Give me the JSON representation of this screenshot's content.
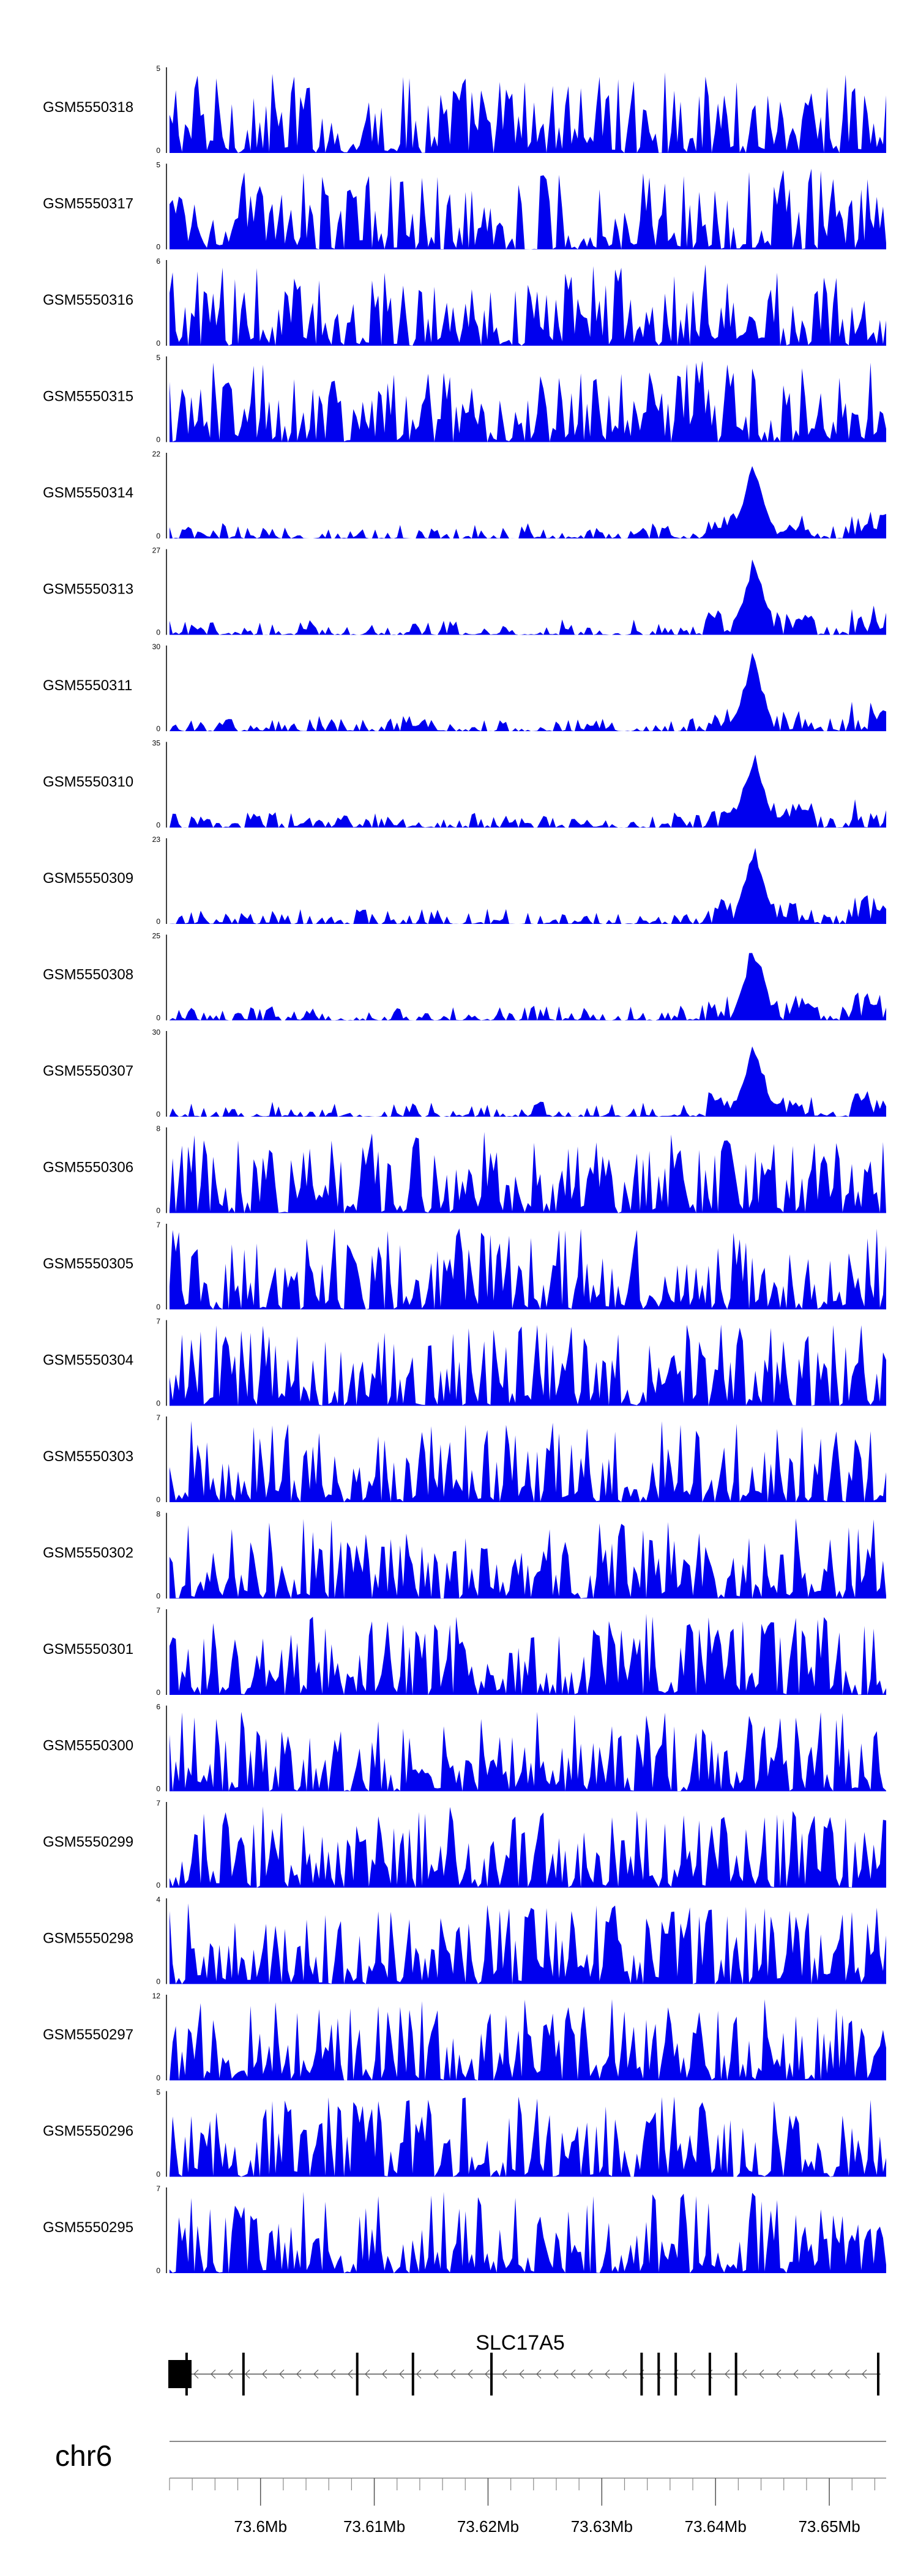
{
  "colors": {
    "track": "#0000ee",
    "axis": "#000000",
    "gene": "#000000"
  },
  "chart_data": {
    "type": "area",
    "title": "",
    "chromosome": "chr6",
    "xlim": [
      73.592,
      73.655
    ],
    "x_unit": "Mb",
    "x_ticks": [
      "73.6Mb",
      "73.61Mb",
      "73.62Mb",
      "73.63Mb",
      "73.64Mb",
      "73.65Mb"
    ],
    "tracks": [
      {
        "name": "GSM5550318",
        "ymax": 5,
        "ymin_label": "0",
        "ymax_label": "5"
      },
      {
        "name": "GSM5550317",
        "ymax": 5,
        "ymin_label": "0",
        "ymax_label": "5"
      },
      {
        "name": "GSM5550316",
        "ymax": 6,
        "ymin_label": "0",
        "ymax_label": "6"
      },
      {
        "name": "GSM5550315",
        "ymax": 5,
        "ymin_label": "0",
        "ymax_label": "5"
      },
      {
        "name": "GSM5550314",
        "ymax": 22,
        "ymin_label": "0",
        "ymax_label": "22"
      },
      {
        "name": "GSM5550313",
        "ymax": 27,
        "ymin_label": "0",
        "ymax_label": "27"
      },
      {
        "name": "GSM5550311",
        "ymax": 30,
        "ymin_label": "0",
        "ymax_label": "30"
      },
      {
        "name": "GSM5550310",
        "ymax": 35,
        "ymin_label": "0",
        "ymax_label": "35"
      },
      {
        "name": "GSM5550309",
        "ymax": 23,
        "ymin_label": "0",
        "ymax_label": "23"
      },
      {
        "name": "GSM5550308",
        "ymax": 25,
        "ymin_label": "0",
        "ymax_label": "25"
      },
      {
        "name": "GSM5550307",
        "ymax": 30,
        "ymin_label": "0",
        "ymax_label": "30"
      },
      {
        "name": "GSM5550306",
        "ymax": 8,
        "ymin_label": "0",
        "ymax_label": "8"
      },
      {
        "name": "GSM5550305",
        "ymax": 7,
        "ymin_label": "0",
        "ymax_label": "7"
      },
      {
        "name": "GSM5550304",
        "ymax": 7,
        "ymin_label": "0",
        "ymax_label": "7"
      },
      {
        "name": "GSM5550303",
        "ymax": 7,
        "ymin_label": "0",
        "ymax_label": "7"
      },
      {
        "name": "GSM5550302",
        "ymax": 8,
        "ymin_label": "0",
        "ymax_label": "8"
      },
      {
        "name": "GSM5550301",
        "ymax": 7,
        "ymin_label": "0",
        "ymax_label": "7"
      },
      {
        "name": "GSM5550300",
        "ymax": 6,
        "ymin_label": "0",
        "ymax_label": "6"
      },
      {
        "name": "GSM5550299",
        "ymax": 7,
        "ymin_label": "0",
        "ymax_label": "7"
      },
      {
        "name": "GSM5550298",
        "ymax": 4,
        "ymin_label": "0",
        "ymax_label": "4"
      },
      {
        "name": "GSM5550297",
        "ymax": 12,
        "ymin_label": "0",
        "ymax_label": "12"
      },
      {
        "name": "GSM5550296",
        "ymax": 5,
        "ymin_label": "0",
        "ymax_label": "5"
      },
      {
        "name": "GSM5550295",
        "ymax": 7,
        "ymin_label": "0",
        "ymax_label": "7"
      }
    ],
    "gene": {
      "name": "SLC17A5",
      "strand": "-",
      "start": 73.592,
      "end": 73.6545,
      "exons": [
        73.5935,
        73.5985,
        73.6085,
        73.6134,
        73.6203,
        73.6335,
        73.635,
        73.6365,
        73.6395,
        73.6418,
        73.6543
      ]
    }
  }
}
